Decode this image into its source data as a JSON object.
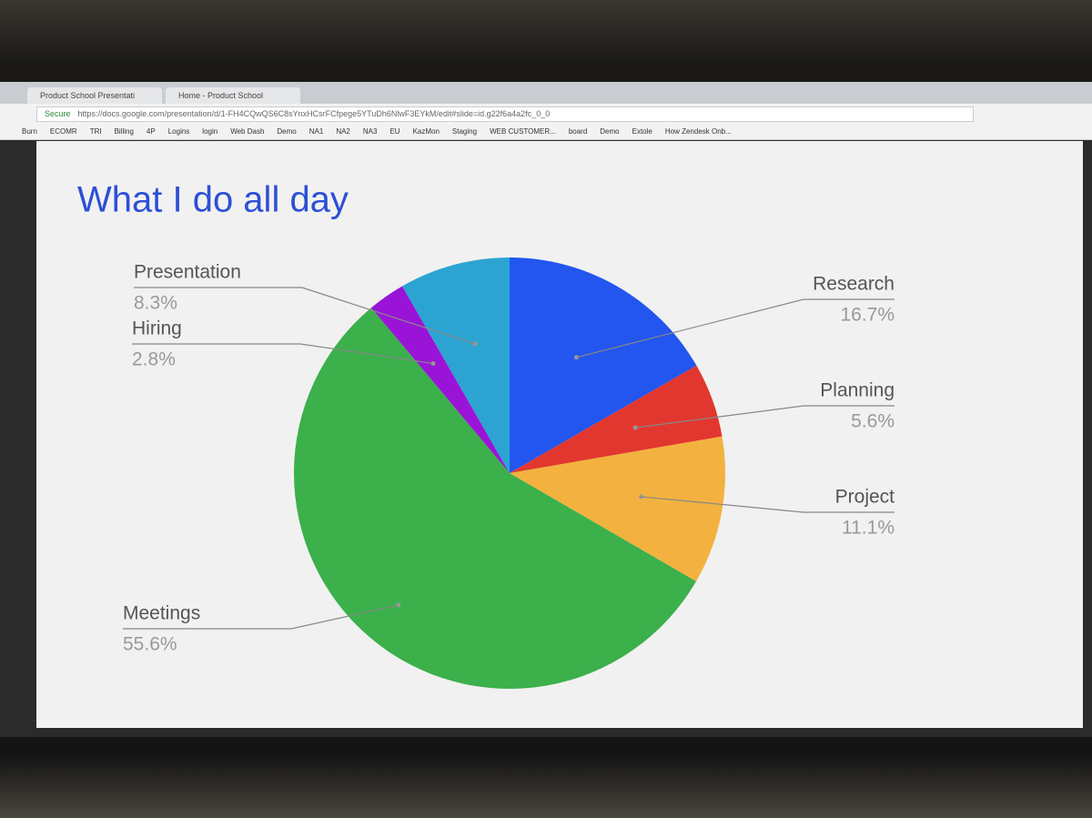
{
  "browser": {
    "tabs": [
      "Product School Presentati",
      "Home - Product School"
    ],
    "secure": "Secure",
    "url": "https://docs.google.com/presentation/d/1-FH4CQwQS6C8sYnxHCsrFCfpege5YTuDh6NlwF3EYkM/edit#slide=id.g22f6a4a2fc_0_0",
    "bookmarks": [
      "Burn",
      "ECOMR",
      "TRI",
      "Billing",
      "4P",
      "Logins",
      "login",
      "Web Dash",
      "Demo",
      "NA1",
      "NA2",
      "NA3",
      "EU",
      "KazMon",
      "Staging",
      "WEB CUSTOMER...",
      "board",
      "Demo",
      "Extole",
      "How Zendesk Onb..."
    ]
  },
  "chart_data": {
    "type": "pie",
    "title": "What I do all day",
    "categories": [
      "Research",
      "Planning",
      "Project",
      "Meetings",
      "Hiring",
      "Presentation"
    ],
    "values": [
      16.7,
      5.6,
      11.1,
      55.6,
      2.8,
      8.3
    ],
    "value_labels": [
      "16.7%",
      "5.6%",
      "11.1%",
      "55.6%",
      "2.8%",
      "8.3%"
    ],
    "colors": [
      "#2256ee",
      "#e2372e",
      "#f3b23f",
      "#3bb04b",
      "#9a14d8",
      "#2ba4d2"
    ]
  }
}
